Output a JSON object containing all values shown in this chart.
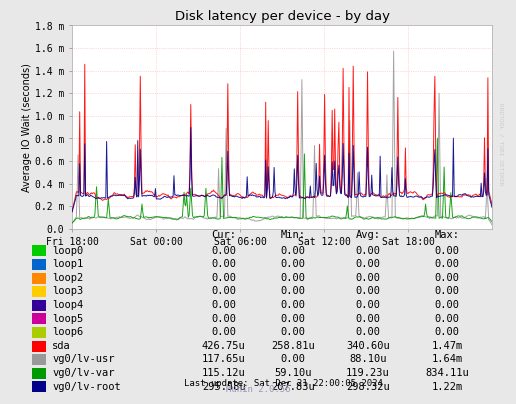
{
  "title": "Disk latency per device - by day",
  "ylabel": "Average IO Wait (seconds)",
  "watermark": "RRDTOOL / TOBI OETIKER",
  "munin_version": "Munin 2.0.56",
  "last_update": "Last update: Sat Dec 21 22:00:05 2024",
  "ylim": [
    0,
    0.0018
  ],
  "ytick_labels": [
    "0.0",
    "0.2 m",
    "0.4 m",
    "0.6 m",
    "0.8 m",
    "1.0 m",
    "1.2 m",
    "1.4 m",
    "1.6 m",
    "1.8 m"
  ],
  "xtick_labels": [
    "Fri 18:00",
    "Sat 00:00",
    "Sat 06:00",
    "Sat 12:00",
    "Sat 18:00"
  ],
  "bg_color": "#e8e8e8",
  "plot_bg_color": "#ffffff",
  "legend_items": [
    {
      "label": "loop0",
      "color": "#00cc00"
    },
    {
      "label": "loop1",
      "color": "#0066cc"
    },
    {
      "label": "loop2",
      "color": "#ff8800"
    },
    {
      "label": "loop3",
      "color": "#ffcc00"
    },
    {
      "label": "loop4",
      "color": "#330099"
    },
    {
      "label": "loop5",
      "color": "#cc0099"
    },
    {
      "label": "loop6",
      "color": "#aacc00"
    },
    {
      "label": "sda",
      "color": "#ff0000"
    },
    {
      "label": "vg0/lv-usr",
      "color": "#999999"
    },
    {
      "label": "vg0/lv-var",
      "color": "#009900"
    },
    {
      "label": "vg0/lv-root",
      "color": "#00008b"
    }
  ],
  "legend_stats": [
    {
      "label": "loop0",
      "cur": "0.00",
      "min": "0.00",
      "avg": "0.00",
      "max": "0.00"
    },
    {
      "label": "loop1",
      "cur": "0.00",
      "min": "0.00",
      "avg": "0.00",
      "max": "0.00"
    },
    {
      "label": "loop2",
      "cur": "0.00",
      "min": "0.00",
      "avg": "0.00",
      "max": "0.00"
    },
    {
      "label": "loop3",
      "cur": "0.00",
      "min": "0.00",
      "avg": "0.00",
      "max": "0.00"
    },
    {
      "label": "loop4",
      "cur": "0.00",
      "min": "0.00",
      "avg": "0.00",
      "max": "0.00"
    },
    {
      "label": "loop5",
      "cur": "0.00",
      "min": "0.00",
      "avg": "0.00",
      "max": "0.00"
    },
    {
      "label": "loop6",
      "cur": "0.00",
      "min": "0.00",
      "avg": "0.00",
      "max": "0.00"
    },
    {
      "label": "sda",
      "cur": "426.75u",
      "min": "258.81u",
      "avg": "340.60u",
      "max": "1.47m"
    },
    {
      "label": "vg0/lv-usr",
      "cur": "117.65u",
      "min": "0.00",
      "avg": "88.10u",
      "max": "1.64m"
    },
    {
      "label": "vg0/lv-var",
      "cur": "115.12u",
      "min": "59.10u",
      "avg": "119.23u",
      "max": "834.11u"
    },
    {
      "label": "vg0/lv-root",
      "cur": "295.58u",
      "min": "207.83u",
      "avg": "298.32u",
      "max": "1.22m"
    }
  ]
}
